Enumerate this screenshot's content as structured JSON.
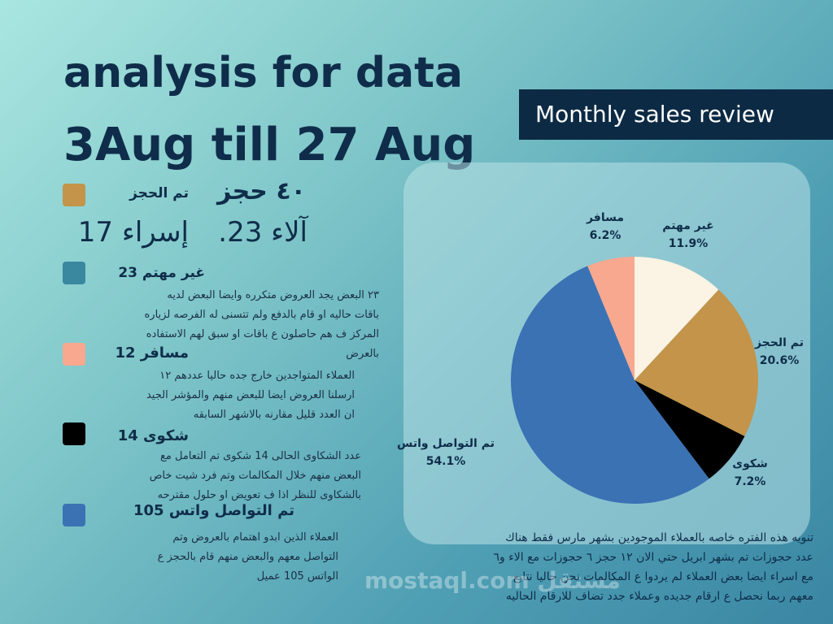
{
  "header": {
    "title_line1": "analysis for data",
    "title_line2": "3Aug till 27 Aug",
    "banner": "Monthly sales review"
  },
  "left": {
    "booked": {
      "label": "تم الحجز",
      "count": "٤٠ حجز",
      "color": "#c39449",
      "agents": [
        "آلاء 23.",
        "إسراء 17"
      ]
    },
    "not_interested": {
      "label": "غير مهتم  23",
      "color": "#3a87a0",
      "desc": [
        "٢٣ البعض يجد العروض متكرره وايضا البعض لديه",
        "باقات حاليه او قام بالدفع ولم تتسنى له الفرصه لزياره",
        "المركز ف هم حاصلون ع باقات او سبق لهم الاستفاده",
        "بالعرض"
      ]
    },
    "traveler": {
      "label": "مسافر 12",
      "color": "#f8a88f",
      "desc": [
        "العملاء المتواجدين خارج جده حاليا عددهم ١٢",
        "ارسلنا العروض ايضا للبعض منهم والمؤشر الجيد",
        "ان العدد قليل مقارنه بالاشهر السابقه"
      ]
    },
    "complaint": {
      "label": "شكوى 14",
      "color": "#000000",
      "desc": [
        "عدد الشكاوى الحالى 14 شكوى تم التعامل مع",
        "البعض منهم خلال المكالمات وتم فرد شيت خاص",
        "بالشكاوى للنظر اذا ف تعويض او حلول مقترحه"
      ]
    },
    "whatsapp": {
      "label": "تم التواصل واتس 105",
      "color": "#3b72b4",
      "desc": [
        "العملاء الذين ابدو اهتمام بالعروض وتم",
        "التواصل معهم والبعض منهم قام بالحجز ع",
        "الواتس  105 عميل"
      ]
    }
  },
  "note": [
    "تنويه هذه الفتره خاصه بالعملاء الموجودين بشهر مارس فقط  هناك",
    "عدد حجوزات تم بشهر ابريل حتي الان ١٢ حجز  ٦ حجوزات مع الاء و٦",
    "مع اسراء  ايضا بعض العملاء لم يردوا ع المكالمات نحن حاليا نتابع",
    "معهم ربما نحصل ع ارقام جديده وعملاء جدد تضاف للارقام الحاليه"
  ],
  "watermark": "mostaql.com مستقل",
  "chart_data": {
    "type": "pie",
    "title": "",
    "slices": [
      {
        "label": "غير مهتم",
        "value": 11.9,
        "display": "11.9%",
        "color": "#fbf3e3"
      },
      {
        "label": "تم الحجز",
        "value": 20.6,
        "display": "20.6%",
        "color": "#c39449"
      },
      {
        "label": "شكوى",
        "value": 7.2,
        "display": "7.2%",
        "color": "#000000"
      },
      {
        "label": "تم التواصل واتس",
        "value": 54.1,
        "display": "54.1%",
        "color": "#3b72b4"
      },
      {
        "label": "مسافر",
        "value": 6.2,
        "display": "6.2%",
        "color": "#f8a88f"
      }
    ]
  }
}
